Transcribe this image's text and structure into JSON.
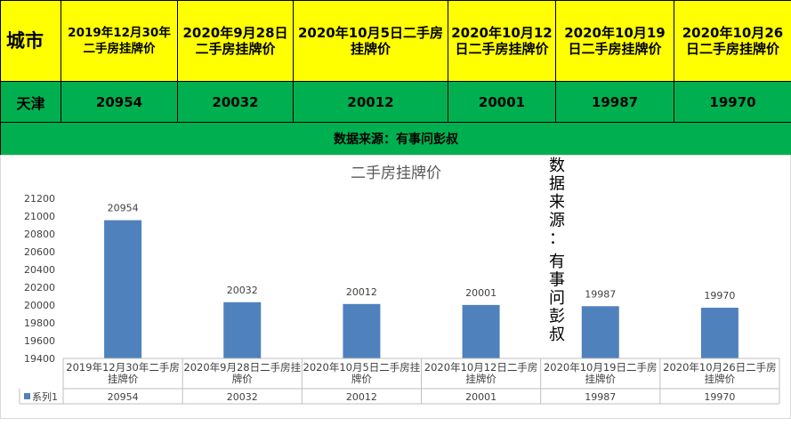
{
  "table": {
    "city_header": "城市",
    "column_headers": [
      "2019年12月30年二手房挂牌价",
      "2020年9月28日二手房挂牌价",
      "2020年10月5日二手房挂牌价",
      "2020年10月12日二手房挂牌价",
      "2020年10月19日二手房挂牌价",
      "2020年10月26日二手房挂牌价"
    ],
    "city": "天津",
    "values": [
      "20954",
      "20032",
      "20012",
      "20001",
      "19987",
      "19970"
    ],
    "source_note": "数据来源：有事问彭叔"
  },
  "chart_data": {
    "type": "bar",
    "title": "二手房挂牌价",
    "categories": [
      "2019年12月30年二手房挂牌价",
      "2020年9月28日二手房挂牌价",
      "2020年10月5日二手房挂牌价",
      "2020年10月12日二手房挂牌价",
      "2020年10月19日二手房挂牌价",
      "2020年10月26日二手房挂牌价"
    ],
    "category_lines": [
      [
        "2019年12月30年二手房",
        "挂牌价"
      ],
      [
        "2020年9月28日二手房挂",
        "牌价"
      ],
      [
        "2020年10月5日二手房挂",
        "牌价"
      ],
      [
        "2020年10月12日二手房",
        "挂牌价"
      ],
      [
        "2020年10月19日二手房",
        "挂牌价"
      ],
      [
        "2020年10月26日二手房",
        "挂牌价"
      ]
    ],
    "series": [
      {
        "name": "系列1",
        "values": [
          20954,
          20032,
          20012,
          20001,
          19987,
          19970
        ]
      }
    ],
    "ylim": [
      19400,
      21200
    ],
    "yticks": [
      19400,
      19600,
      19800,
      20000,
      20200,
      20400,
      20600,
      20800,
      21000,
      21200
    ],
    "data_labels": true,
    "data_table": true,
    "grid": false,
    "bar_color": "#4f81bd",
    "watermark": "数据来源：有事问彭叔"
  }
}
